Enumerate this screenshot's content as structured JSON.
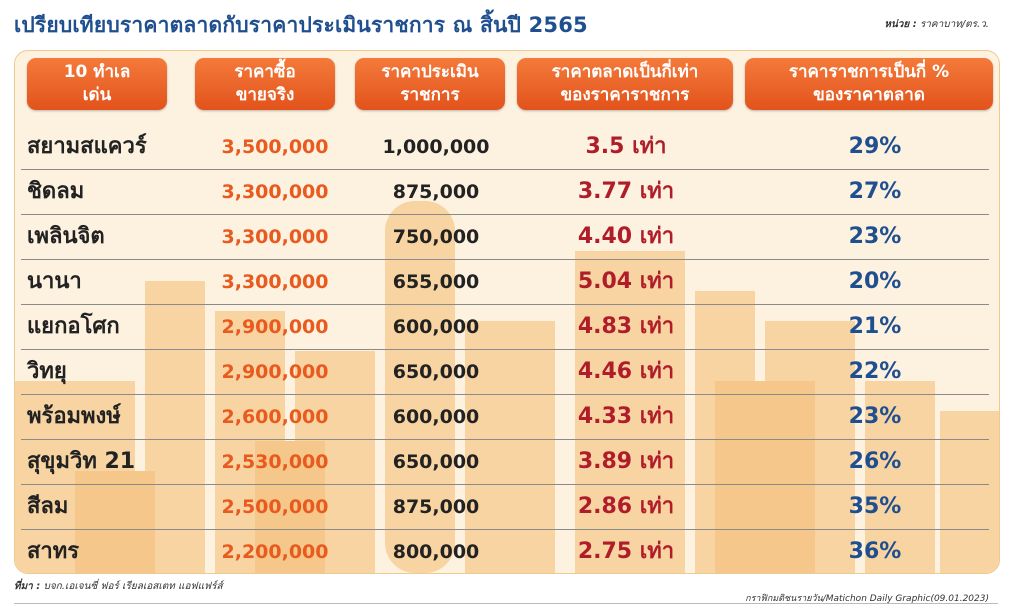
{
  "title": "เปรียบเทียบราคาตลาดกับราคาประเมินราชการ ณ สิ้นปี 2565",
  "unit": {
    "label": "หน่วย :",
    "value": "ราคาบาท/ตร.ว."
  },
  "headers": [
    {
      "line1": "10 ทำเล",
      "line2": "เด่น"
    },
    {
      "line1": "ราคาซื้อ",
      "line2": "ขายจริง"
    },
    {
      "line1": "ราคาประเมิน",
      "line2": "ราชการ"
    },
    {
      "line1": "ราคาตลาดเป็นกี่เท่า",
      "line2": "ของราคาราชการ"
    },
    {
      "line1": "ราคาราชการเป็นกี่ %",
      "line2": "ของราคาตลาด"
    }
  ],
  "rows": [
    {
      "name": "สยามสแควร์",
      "sale": "3,500,000",
      "assess": "1,000,000",
      "ratio": "3.5 เท่า",
      "pct": "29%"
    },
    {
      "name": "ชิดลม",
      "sale": "3,300,000",
      "assess": "875,000",
      "ratio": "3.77 เท่า",
      "pct": "27%"
    },
    {
      "name": "เพลินจิต",
      "sale": "3,300,000",
      "assess": "750,000",
      "ratio": "4.40 เท่า",
      "pct": "23%"
    },
    {
      "name": "นานา",
      "sale": "3,300,000",
      "assess": "655,000",
      "ratio": "5.04 เท่า",
      "pct": "20%"
    },
    {
      "name": "แยกอโศก",
      "sale": "2,900,000",
      "assess": "600,000",
      "ratio": "4.83 เท่า",
      "pct": "21%"
    },
    {
      "name": "วิทยุ",
      "sale": "2,900,000",
      "assess": "650,000",
      "ratio": "4.46 เท่า",
      "pct": "22%"
    },
    {
      "name": "พร้อมพงษ์",
      "sale": "2,600,000",
      "assess": "600,000",
      "ratio": "4.33 เท่า",
      "pct": "23%"
    },
    {
      "name": "สุขุมวิท 21",
      "sale": "2,530,000",
      "assess": "650,000",
      "ratio": "3.89 เท่า",
      "pct": "26%"
    },
    {
      "name": "สีลม",
      "sale": "2,500,000",
      "assess": "875,000",
      "ratio": "2.86 เท่า",
      "pct": "35%"
    },
    {
      "name": "สาทร",
      "sale": "2,200,000",
      "assess": "800,000",
      "ratio": "2.75 เท่า",
      "pct": "36%"
    }
  ],
  "source": {
    "label": "ที่มา :",
    "value": "บจก.เอเจนซี่ ฟอร์ เรียลเอสเตท แอฟแฟร์ส์"
  },
  "credit": "กราฟิกมติชนรายวัน/Matichon Daily Graphic(09.01.2023)",
  "colors": {
    "title": "#1f4f8f",
    "header": "#e95a22",
    "sale": "#e85a1e",
    "ratio": "#b01d2a",
    "pct": "#1f4f8f",
    "panel": "#fdf1df"
  }
}
